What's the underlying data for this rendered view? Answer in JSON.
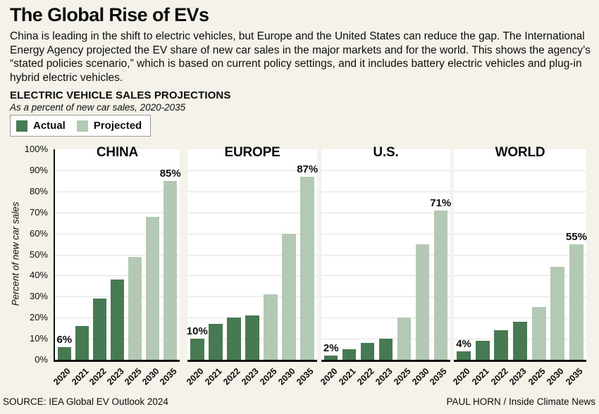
{
  "page": {
    "title": "The Global Rise of EVs",
    "intro": "China is leading in the shift to electric vehicles, but Europe and the United States can reduce the gap. The International Energy Agency projected the EV share of new car sales in the major markets and for the world. This shows the agency’s “stated policies scenario,” which is based on current policy settings, and it includes battery electric vehicles and plug-in hybrid electric vehicles.",
    "section_heading": "ELECTRIC VEHICLE SALES PROJECTIONS",
    "section_subtitle": "As a percent of new car sales, 2020-2035",
    "source": "SOURCE: IEA Global EV Outlook 2024",
    "credit": "PAUL HORN / Inside Climate News"
  },
  "legend": {
    "actual_label": "Actual",
    "projected_label": "Projected"
  },
  "colors": {
    "actual": "#477a52",
    "projected": "#b3c9b4",
    "background": "#f4f2e9",
    "panel": "#ffffff",
    "gridline": "#e2e2e2",
    "axis": "#111111"
  },
  "chart_data": {
    "type": "bar",
    "title": "ELECTRIC VEHICLE SALES PROJECTIONS",
    "subtitle": "As a percent of new car sales, 2020-2035",
    "ylabel": "Percent of new car sales",
    "ylim": [
      0,
      100
    ],
    "ytick_step": 10,
    "grid": true,
    "legend_position": "top-left",
    "categories": [
      "2020",
      "2021",
      "2022",
      "2023",
      "2025",
      "2030",
      "2035"
    ],
    "actual_years": [
      "2020",
      "2021",
      "2022",
      "2023"
    ],
    "projected_years": [
      "2025",
      "2030",
      "2035"
    ],
    "series_note": "values are percent of new car sales",
    "panels": [
      {
        "title": "CHINA",
        "values": [
          6,
          16,
          29,
          38,
          49,
          68,
          85
        ],
        "callouts": [
          {
            "year": "2020",
            "label": "6%"
          },
          {
            "year": "2035",
            "label": "85%"
          }
        ]
      },
      {
        "title": "EUROPE",
        "values": [
          10,
          17,
          20,
          21,
          31,
          60,
          87
        ],
        "callouts": [
          {
            "year": "2020",
            "label": "10%"
          },
          {
            "year": "2035",
            "label": "87%"
          }
        ]
      },
      {
        "title": "U.S.",
        "values": [
          2,
          5,
          8,
          10,
          20,
          55,
          71
        ],
        "callouts": [
          {
            "year": "2020",
            "label": "2%"
          },
          {
            "year": "2035",
            "label": "71%"
          }
        ]
      },
      {
        "title": "WORLD",
        "values": [
          4,
          9,
          14,
          18,
          25,
          44,
          55
        ],
        "callouts": [
          {
            "year": "2020",
            "label": "4%"
          },
          {
            "year": "2035",
            "label": "55%"
          }
        ]
      }
    ]
  }
}
